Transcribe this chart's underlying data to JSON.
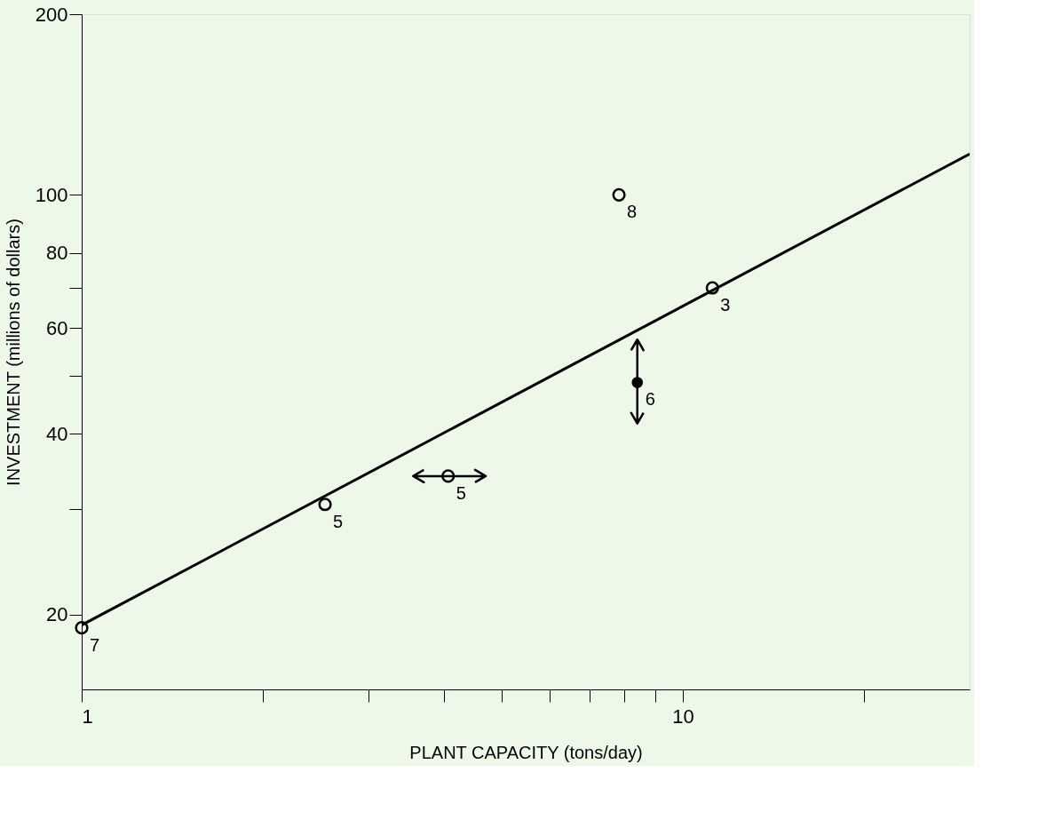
{
  "chart_data": {
    "type": "scatter",
    "xlabel": "PLANT CAPACITY (tons/day)",
    "ylabel": "INVESTMENT (millions of dollars)",
    "xlim": [
      1,
      30
    ],
    "ylim": [
      15,
      200
    ],
    "log": "xy",
    "grid": false,
    "marker": "circle",
    "xticks": [
      1,
      {
        "value": 2,
        "label": null
      },
      {
        "value": 3,
        "label": null
      },
      {
        "value": 4,
        "label": null
      },
      {
        "value": 5,
        "label": null
      },
      {
        "value": 6,
        "label": null
      },
      {
        "value": 7,
        "label": null
      },
      {
        "value": 8,
        "label": null
      },
      {
        "value": 9,
        "label": null
      },
      10,
      {
        "value": 20,
        "label": null
      }
    ],
    "yticks": [
      20,
      {
        "value": 30,
        "label": null
      },
      40,
      {
        "value": 50,
        "label": null
      },
      60,
      {
        "value": 70,
        "label": null
      },
      80,
      100,
      200
    ],
    "series": [
      {
        "type": "scatter",
        "color": "#000000",
        "x": [
          1,
          2.54,
          4.07,
          11.2,
          7.83
        ],
        "values": [
          19.0,
          30.5,
          34,
          70,
          100
        ],
        "xerrors": [
          null,
          null,
          [
            3.56,
            4.7
          ],
          null,
          null
        ]
      },
      {
        "type": "scatter",
        "color": "#000000",
        "x": [
          8.4
        ],
        "values": [
          48.7
        ],
        "errors": [
          [
            41.6,
            57.4
          ]
        ]
      },
      {
        "type": "line",
        "color": "#000000",
        "marker": "none",
        "x": [
          1,
          30
        ],
        "values": [
          19.2,
          117
        ]
      }
    ],
    "annotations": [
      {
        "text": "7",
        "x": 1,
        "y": 19.0
      },
      {
        "text": "5",
        "x": 2.54,
        "y": 30.5
      },
      {
        "text": "5",
        "x": 4.07,
        "y": 34
      },
      {
        "text": "3",
        "x": 11.2,
        "y": 70
      },
      {
        "text": "6",
        "x": 8.4,
        "y": 48.7
      },
      {
        "text": "8",
        "x": 7.83,
        "y": 100
      }
    ]
  }
}
